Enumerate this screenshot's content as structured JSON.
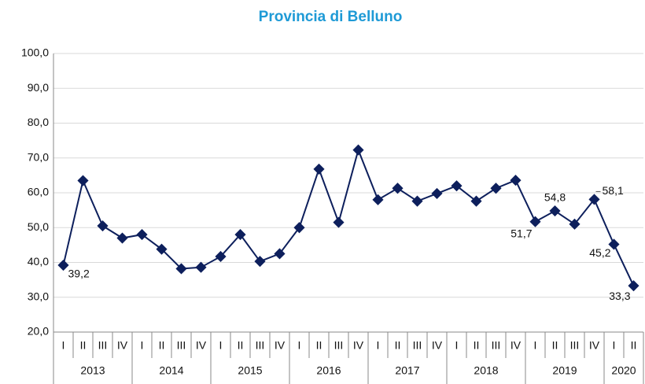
{
  "chart_data": {
    "type": "line",
    "title": "Provincia di Belluno",
    "categories": [
      "I",
      "II",
      "III",
      "IV",
      "I",
      "II",
      "III",
      "IV",
      "I",
      "II",
      "III",
      "IV",
      "I",
      "II",
      "III",
      "IV",
      "I",
      "II",
      "III",
      "IV",
      "I",
      "II",
      "III",
      "IV",
      "I",
      "II",
      "III",
      "IV",
      "I",
      "II"
    ],
    "year_labels": [
      "2013",
      null,
      null,
      null,
      "2014",
      null,
      null,
      null,
      "2015",
      null,
      null,
      null,
      "2016",
      null,
      null,
      null,
      "2017",
      null,
      null,
      null,
      "2018",
      null,
      null,
      null,
      "2019",
      null,
      null,
      null,
      "2020",
      null
    ],
    "values": [
      39.2,
      63.5,
      50.5,
      47.0,
      48.0,
      43.8,
      38.2,
      38.6,
      41.7,
      48.0,
      40.3,
      42.5,
      50.0,
      66.8,
      51.5,
      72.3,
      58.0,
      61.3,
      57.6,
      59.8,
      62.0,
      57.6,
      61.3,
      63.6,
      51.7,
      54.8,
      51.0,
      58.1,
      45.2,
      33.3
    ],
    "value_labels": [
      "39,2",
      null,
      null,
      null,
      null,
      null,
      null,
      null,
      null,
      null,
      null,
      null,
      null,
      null,
      null,
      null,
      null,
      null,
      null,
      null,
      null,
      null,
      null,
      null,
      "51,7",
      "54,8",
      null,
      "58,1",
      "45,2",
      "33,3"
    ],
    "color": "#0d1f5c",
    "ylim": [
      20,
      100
    ],
    "yticks": [
      {
        "value": 20,
        "label": "20,0"
      },
      {
        "value": 30,
        "label": "30,0"
      },
      {
        "value": 40,
        "label": "40,0"
      },
      {
        "value": 50,
        "label": "50,0"
      },
      {
        "value": 60,
        "label": "60,0"
      },
      {
        "value": 70,
        "label": "70,0"
      },
      {
        "value": 80,
        "label": "80,0"
      },
      {
        "value": 90,
        "label": "90,0"
      },
      {
        "value": 100,
        "label": "100,0"
      }
    ],
    "grid": true
  }
}
